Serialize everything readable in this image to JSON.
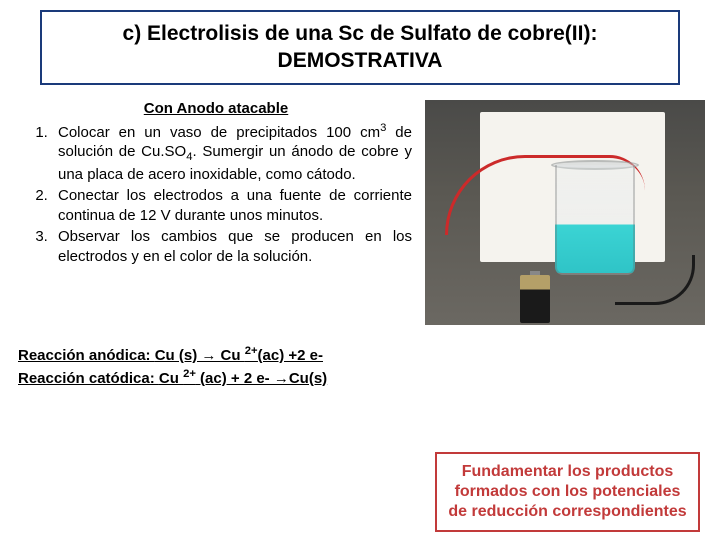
{
  "title": "c) Electrolisis de una Sc de Sulfato de cobre(II): DEMOSTRATIVA",
  "subtitle": "Con Anodo atacable",
  "steps": [
    {
      "pre": "Colocar en un vaso de precipitados 100 cm",
      "sup3": "3",
      "mid": " de solución de Cu.SO",
      "sub4": "4",
      "post": ". Sumergir un ánodo de cobre y una placa de acero inoxidable, como cátodo."
    },
    {
      "full": "Conectar los electrodos a una fuente de corriente continua de 12 V durante unos minutos."
    },
    {
      "full": "Observar los cambios que se producen en los electrodos y en el color de la solución."
    }
  ],
  "reactions": {
    "anodic_label": "Reacción anódica: ",
    "anodic_eq_pre": "Cu (s) → Cu ",
    "anodic_sup": "2+",
    "anodic_eq_post": "(ac) +2 e-",
    "cathodic_label": "Reacción catódica: ",
    "cathodic_eq_pre": "Cu ",
    "cathodic_sup": "2+",
    "cathodic_eq_post": " (ac) + 2 e- →Cu(s)"
  },
  "bottom_note": "Fundamentar los productos formados con los potenciales de reducción correspondientes",
  "colors": {
    "title_border": "#1a3a7a",
    "note_border": "#c23a3a",
    "note_text": "#c23a3a",
    "solution": "#3bd4d4",
    "wire_red": "#cc2a2a",
    "wire_black": "#1a1a1a"
  }
}
